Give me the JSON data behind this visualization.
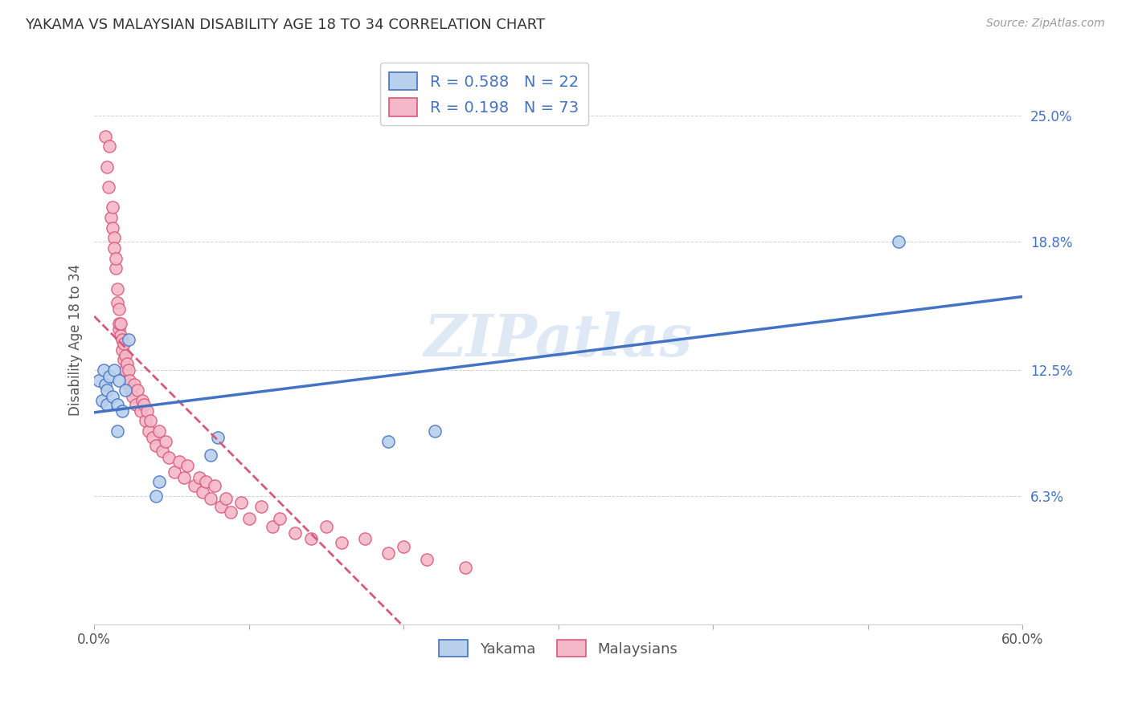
{
  "title": "YAKAMA VS MALAYSIAN DISABILITY AGE 18 TO 34 CORRELATION CHART",
  "source": "Source: ZipAtlas.com",
  "ylabel": "Disability Age 18 to 34",
  "ytick_values": [
    0.063,
    0.125,
    0.188,
    0.25
  ],
  "ytick_labels": [
    "6.3%",
    "12.5%",
    "18.8%",
    "25.0%"
  ],
  "xlim": [
    0.0,
    0.6
  ],
  "ylim": [
    0.0,
    0.28
  ],
  "watermark": "ZIPatlas",
  "legend_r1": "0.588",
  "legend_n1": "22",
  "legend_r2": "0.198",
  "legend_n2": "73",
  "yakama_fill_color": "#b8d0eb",
  "yakama_edge_color": "#4472c4",
  "malaysian_fill_color": "#f4b8c8",
  "malaysian_edge_color": "#d9587a",
  "yakama_line_color": "#4472c4",
  "malaysian_line_color": "#d9587a",
  "yakama_x": [
    0.003,
    0.005,
    0.006,
    0.007,
    0.008,
    0.008,
    0.01,
    0.012,
    0.013,
    0.015,
    0.015,
    0.016,
    0.018,
    0.02,
    0.022,
    0.04,
    0.042,
    0.075,
    0.08,
    0.19,
    0.22,
    0.52
  ],
  "yakama_y": [
    0.12,
    0.11,
    0.125,
    0.118,
    0.108,
    0.115,
    0.122,
    0.112,
    0.125,
    0.095,
    0.108,
    0.12,
    0.105,
    0.115,
    0.14,
    0.063,
    0.07,
    0.083,
    0.092,
    0.09,
    0.095,
    0.188
  ],
  "malaysian_x": [
    0.007,
    0.008,
    0.009,
    0.01,
    0.011,
    0.012,
    0.012,
    0.013,
    0.013,
    0.014,
    0.014,
    0.015,
    0.015,
    0.016,
    0.016,
    0.016,
    0.017,
    0.017,
    0.018,
    0.018,
    0.019,
    0.019,
    0.02,
    0.02,
    0.021,
    0.022,
    0.022,
    0.023,
    0.024,
    0.025,
    0.026,
    0.027,
    0.028,
    0.03,
    0.031,
    0.032,
    0.033,
    0.034,
    0.035,
    0.036,
    0.038,
    0.04,
    0.042,
    0.044,
    0.046,
    0.048,
    0.052,
    0.055,
    0.058,
    0.06,
    0.065,
    0.068,
    0.07,
    0.072,
    0.075,
    0.078,
    0.082,
    0.085,
    0.088,
    0.095,
    0.1,
    0.108,
    0.115,
    0.12,
    0.13,
    0.14,
    0.15,
    0.16,
    0.175,
    0.19,
    0.2,
    0.215,
    0.24
  ],
  "malaysian_y": [
    0.24,
    0.225,
    0.215,
    0.235,
    0.2,
    0.195,
    0.205,
    0.19,
    0.185,
    0.175,
    0.18,
    0.165,
    0.158,
    0.145,
    0.155,
    0.148,
    0.142,
    0.148,
    0.14,
    0.135,
    0.13,
    0.138,
    0.125,
    0.132,
    0.128,
    0.118,
    0.125,
    0.12,
    0.115,
    0.112,
    0.118,
    0.108,
    0.115,
    0.105,
    0.11,
    0.108,
    0.1,
    0.105,
    0.095,
    0.1,
    0.092,
    0.088,
    0.095,
    0.085,
    0.09,
    0.082,
    0.075,
    0.08,
    0.072,
    0.078,
    0.068,
    0.072,
    0.065,
    0.07,
    0.062,
    0.068,
    0.058,
    0.062,
    0.055,
    0.06,
    0.052,
    0.058,
    0.048,
    0.052,
    0.045,
    0.042,
    0.048,
    0.04,
    0.042,
    0.035,
    0.038,
    0.032,
    0.028
  ]
}
